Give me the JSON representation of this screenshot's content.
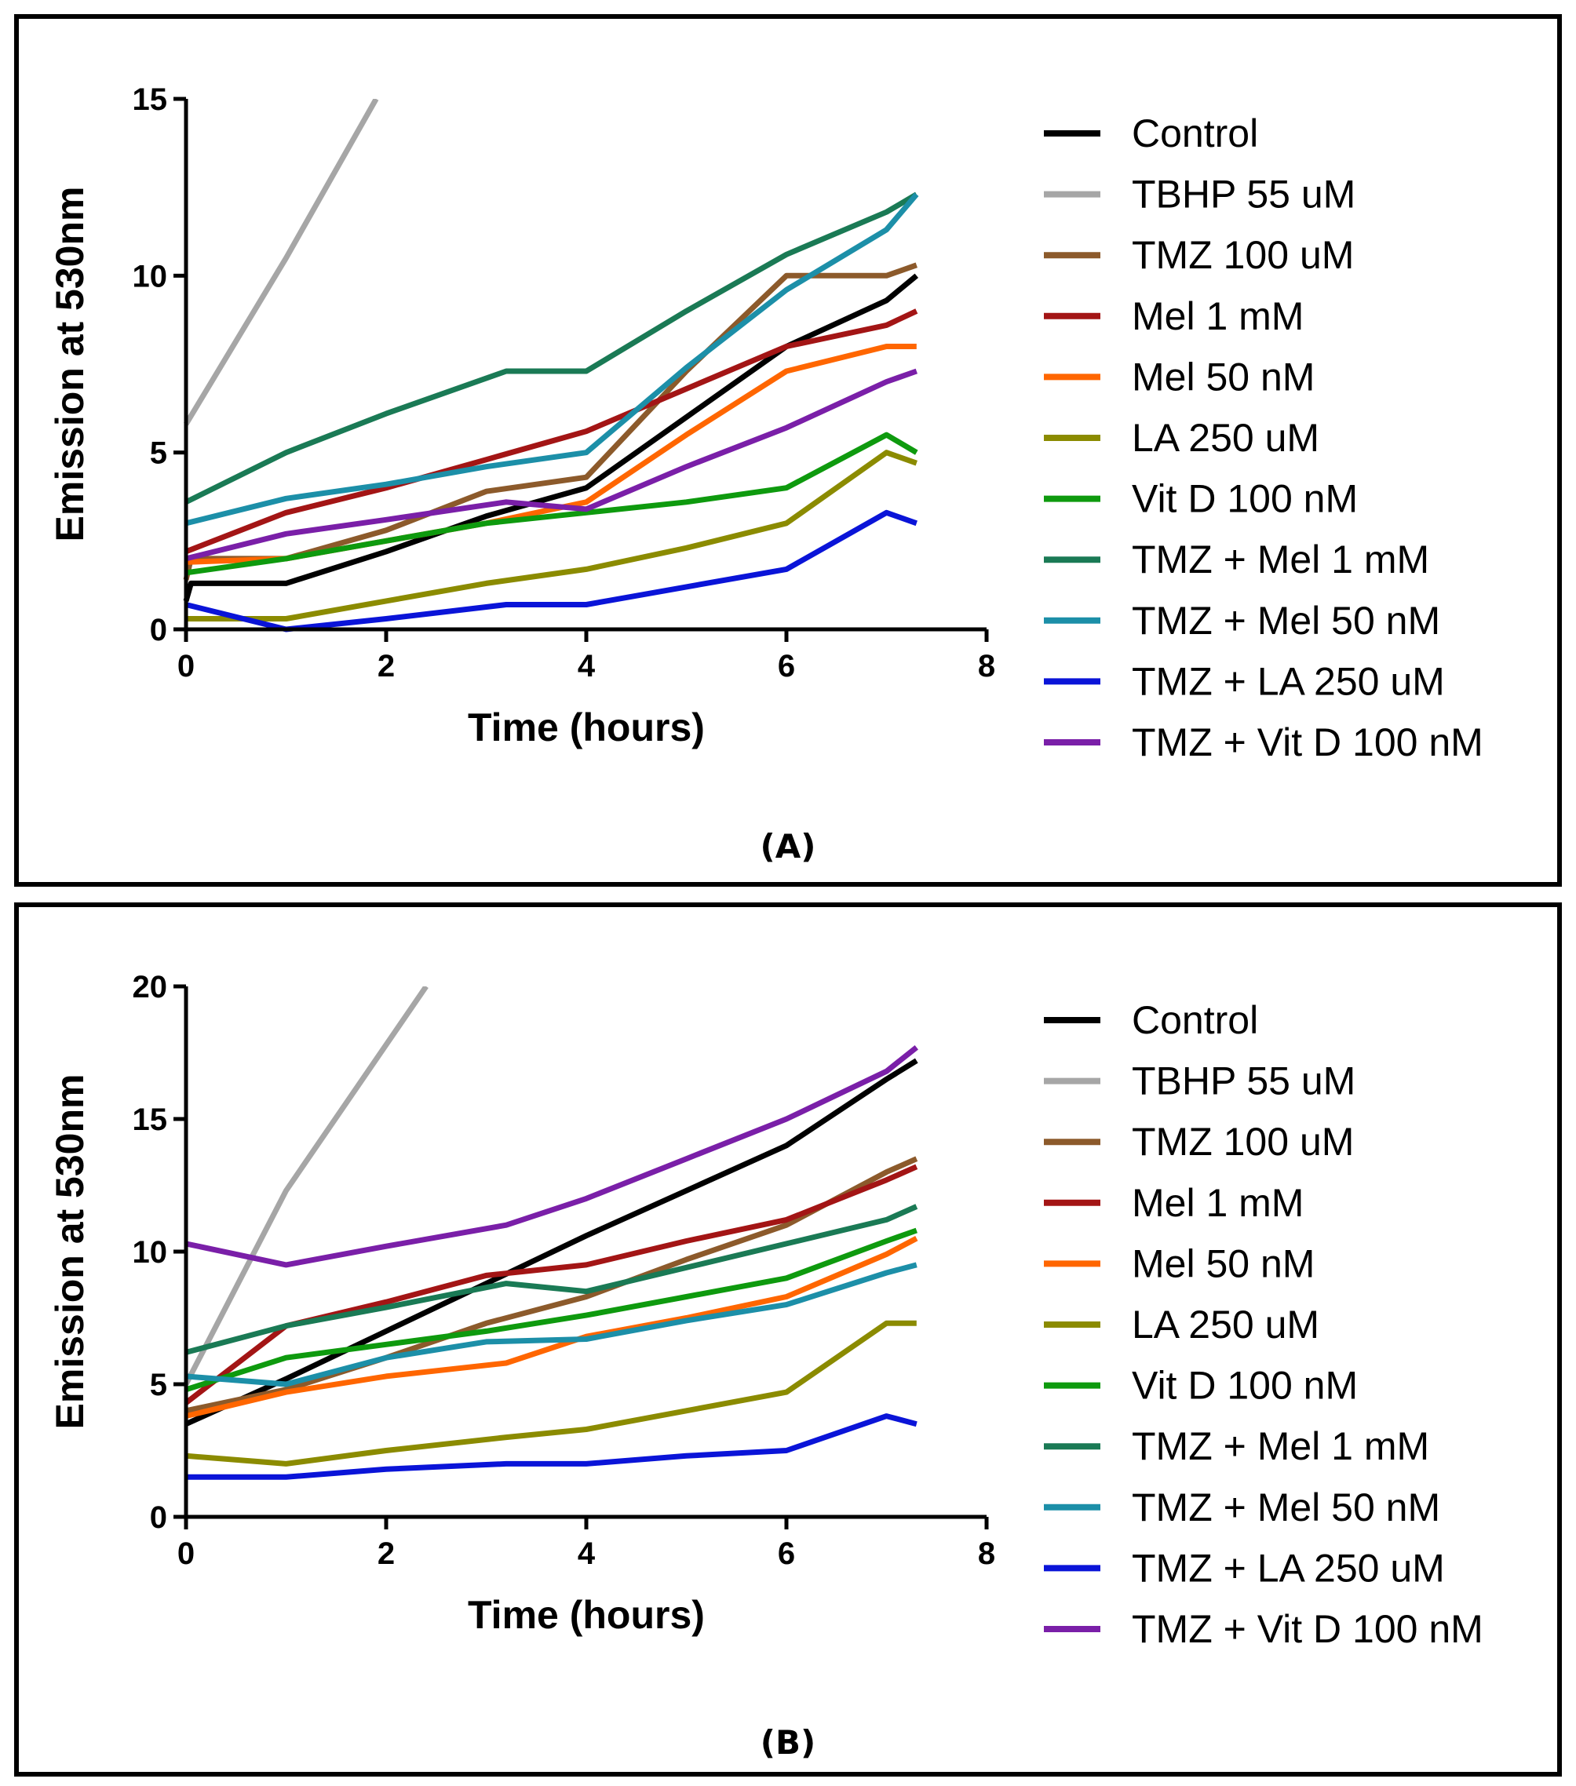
{
  "chart_data": [
    {
      "type": "line",
      "panel_label": "(A)",
      "xlabel": "Time (hours)",
      "ylabel": "Emission at 530nm",
      "xlim": [
        0,
        8
      ],
      "ylim": [
        0,
        15
      ],
      "xticks": [
        0,
        2,
        4,
        6,
        8
      ],
      "yticks": [
        0,
        5,
        10,
        15
      ],
      "legend_position": "right",
      "series": [
        {
          "name": "Control",
          "color": "#000000",
          "points": [
            [
              0,
              0.8
            ],
            [
              0.05,
              1.3
            ],
            [
              1,
              1.3
            ],
            [
              2,
              2.2
            ],
            [
              3,
              3.2
            ],
            [
              4,
              4
            ],
            [
              5,
              6
            ],
            [
              6,
              8
            ],
            [
              7,
              9.3
            ],
            [
              7.3,
              10
            ]
          ]
        },
        {
          "name": "TBHP 55 uM",
          "color": "#a6a6a6",
          "points": [
            [
              0,
              5.8
            ],
            [
              1,
              10.5
            ],
            [
              1.9,
              15
            ]
          ]
        },
        {
          "name": "TMZ 100 uM",
          "color": "#8c5a2b",
          "points": [
            [
              0,
              1.4
            ],
            [
              0.05,
              2
            ],
            [
              1,
              2
            ],
            [
              2,
              2.8
            ],
            [
              3,
              3.9
            ],
            [
              4,
              4.3
            ],
            [
              5,
              7.3
            ],
            [
              6,
              10
            ],
            [
              7,
              10
            ],
            [
              7.3,
              10.3
            ]
          ]
        },
        {
          "name": "Mel 1 mM",
          "color": "#a31515",
          "points": [
            [
              0,
              2.2
            ],
            [
              1,
              3.3
            ],
            [
              2,
              4
            ],
            [
              3,
              4.8
            ],
            [
              4,
              5.6
            ],
            [
              5,
              6.8
            ],
            [
              6,
              8
            ],
            [
              7,
              8.6
            ],
            [
              7.3,
              9
            ]
          ]
        },
        {
          "name": "Mel 50 nM",
          "color": "#ff6600",
          "points": [
            [
              0,
              1.9
            ],
            [
              1,
              2
            ],
            [
              2,
              2.5
            ],
            [
              3,
              3
            ],
            [
              4,
              3.6
            ],
            [
              5,
              5.5
            ],
            [
              6,
              7.3
            ],
            [
              7,
              8
            ],
            [
              7.3,
              8
            ]
          ]
        },
        {
          "name": "LA 250 uM",
          "color": "#8b8b00",
          "points": [
            [
              0,
              0.3
            ],
            [
              1,
              0.3
            ],
            [
              2,
              0.8
            ],
            [
              3,
              1.3
            ],
            [
              4,
              1.7
            ],
            [
              5,
              2.3
            ],
            [
              6,
              3
            ],
            [
              7,
              5
            ],
            [
              7.3,
              4.7
            ]
          ]
        },
        {
          "name": "Vit D 100 nM",
          "color": "#0e9a0e",
          "points": [
            [
              0,
              1.6
            ],
            [
              1,
              2
            ],
            [
              2,
              2.5
            ],
            [
              3,
              3
            ],
            [
              4,
              3.3
            ],
            [
              5,
              3.6
            ],
            [
              6,
              4
            ],
            [
              7,
              5.5
            ],
            [
              7.3,
              5
            ]
          ]
        },
        {
          "name": "TMZ + Mel 1 mM",
          "color": "#1a7a55",
          "points": [
            [
              0,
              3.6
            ],
            [
              1,
              5
            ],
            [
              2,
              6.1
            ],
            [
              3.2,
              7.3
            ],
            [
              4,
              7.3
            ],
            [
              5,
              9
            ],
            [
              6,
              10.6
            ],
            [
              7,
              11.8
            ],
            [
              7.3,
              12.3
            ]
          ]
        },
        {
          "name": "TMZ + Mel 50 nM",
          "color": "#1c8fa8",
          "points": [
            [
              0,
              3
            ],
            [
              1,
              3.7
            ],
            [
              2,
              4.1
            ],
            [
              3,
              4.6
            ],
            [
              4,
              5
            ],
            [
              5,
              7.4
            ],
            [
              6,
              9.6
            ],
            [
              7,
              11.3
            ],
            [
              7.3,
              12.3
            ]
          ]
        },
        {
          "name": "TMZ + LA 250 uM",
          "color": "#0a14d8",
          "points": [
            [
              0,
              0.7
            ],
            [
              1,
              0
            ],
            [
              2,
              0.3
            ],
            [
              3.2,
              0.7
            ],
            [
              4,
              0.7
            ],
            [
              5,
              1.2
            ],
            [
              6,
              1.7
            ],
            [
              7,
              3.3
            ],
            [
              7.3,
              3
            ]
          ]
        },
        {
          "name": "TMZ + Vit D 100 nM",
          "color": "#7a1fa8",
          "points": [
            [
              0,
              2
            ],
            [
              1,
              2.7
            ],
            [
              2,
              3.1
            ],
            [
              3.2,
              3.6
            ],
            [
              4,
              3.4
            ],
            [
              5,
              4.6
            ],
            [
              6,
              5.7
            ],
            [
              7,
              7
            ],
            [
              7.3,
              7.3
            ]
          ]
        }
      ]
    },
    {
      "type": "line",
      "panel_label": "(B)",
      "xlabel": "Time (hours)",
      "ylabel": "Emission at 530nm",
      "xlim": [
        0,
        8
      ],
      "ylim": [
        0,
        20
      ],
      "xticks": [
        0,
        2,
        4,
        6,
        8
      ],
      "yticks": [
        0,
        5,
        10,
        15,
        20
      ],
      "legend_position": "right",
      "series": [
        {
          "name": "Control",
          "color": "#000000",
          "points": [
            [
              0,
              3.5
            ],
            [
              1,
              5.2
            ],
            [
              2,
              7
            ],
            [
              3,
              8.8
            ],
            [
              4,
              10.6
            ],
            [
              5,
              12.3
            ],
            [
              6,
              14
            ],
            [
              7,
              16.5
            ],
            [
              7.3,
              17.2
            ]
          ]
        },
        {
          "name": "TBHP 55 uM",
          "color": "#a6a6a6",
          "points": [
            [
              0,
              5
            ],
            [
              1,
              12.3
            ],
            [
              2.4,
              20
            ]
          ]
        },
        {
          "name": "TMZ 100 uM",
          "color": "#8c5a2b",
          "points": [
            [
              0,
              4
            ],
            [
              1,
              4.8
            ],
            [
              2,
              6
            ],
            [
              3,
              7.3
            ],
            [
              4,
              8.3
            ],
            [
              5,
              9.7
            ],
            [
              6,
              11
            ],
            [
              7,
              13
            ],
            [
              7.3,
              13.5
            ]
          ]
        },
        {
          "name": "Mel 1 mM",
          "color": "#a31515",
          "points": [
            [
              0,
              4.3
            ],
            [
              1,
              7.2
            ],
            [
              2,
              8.1
            ],
            [
              3,
              9.1
            ],
            [
              4,
              9.5
            ],
            [
              5,
              10.4
            ],
            [
              6,
              11.2
            ],
            [
              7,
              12.7
            ],
            [
              7.3,
              13.2
            ]
          ]
        },
        {
          "name": "Mel 50 nM",
          "color": "#ff6600",
          "points": [
            [
              0,
              3.8
            ],
            [
              1,
              4.7
            ],
            [
              2,
              5.3
            ],
            [
              3.2,
              5.8
            ],
            [
              4,
              6.8
            ],
            [
              5,
              7.5
            ],
            [
              6,
              8.3
            ],
            [
              7,
              9.9
            ],
            [
              7.3,
              10.5
            ]
          ]
        },
        {
          "name": "LA 250 uM",
          "color": "#8b8b00",
          "points": [
            [
              0,
              2.3
            ],
            [
              1,
              2
            ],
            [
              2,
              2.5
            ],
            [
              3.2,
              3
            ],
            [
              4,
              3.3
            ],
            [
              5,
              4
            ],
            [
              6,
              4.7
            ],
            [
              7,
              7.3
            ],
            [
              7.3,
              7.3
            ]
          ]
        },
        {
          "name": "Vit D 100 nM",
          "color": "#0e9a0e",
          "points": [
            [
              0,
              4.8
            ],
            [
              1,
              6
            ],
            [
              2,
              6.5
            ],
            [
              3,
              7
            ],
            [
              4,
              7.6
            ],
            [
              5,
              8.3
            ],
            [
              6,
              9
            ],
            [
              7,
              10.4
            ],
            [
              7.3,
              10.8
            ]
          ]
        },
        {
          "name": "TMZ + Mel 1 mM",
          "color": "#1a7a55",
          "points": [
            [
              0,
              6.2
            ],
            [
              1,
              7.2
            ],
            [
              2,
              7.9
            ],
            [
              3.2,
              8.8
            ],
            [
              4,
              8.5
            ],
            [
              5,
              9.4
            ],
            [
              6,
              10.3
            ],
            [
              7,
              11.2
            ],
            [
              7.3,
              11.7
            ]
          ]
        },
        {
          "name": "TMZ + Mel 50 nM",
          "color": "#1c8fa8",
          "points": [
            [
              0,
              5.3
            ],
            [
              1,
              5
            ],
            [
              2,
              6
            ],
            [
              3,
              6.6
            ],
            [
              4,
              6.7
            ],
            [
              5,
              7.4
            ],
            [
              6,
              8
            ],
            [
              7,
              9.2
            ],
            [
              7.3,
              9.5
            ]
          ]
        },
        {
          "name": "TMZ + LA 250 uM",
          "color": "#0a14d8",
          "points": [
            [
              0,
              1.5
            ],
            [
              1,
              1.5
            ],
            [
              2,
              1.8
            ],
            [
              3.2,
              2
            ],
            [
              4,
              2
            ],
            [
              5,
              2.3
            ],
            [
              6,
              2.5
            ],
            [
              7,
              3.8
            ],
            [
              7.3,
              3.5
            ]
          ]
        },
        {
          "name": "TMZ + Vit D 100 nM",
          "color": "#7a1fa8",
          "points": [
            [
              0,
              10.3
            ],
            [
              1,
              9.5
            ],
            [
              2,
              10.2
            ],
            [
              3.2,
              11
            ],
            [
              4,
              12
            ],
            [
              5,
              13.5
            ],
            [
              6,
              15
            ],
            [
              7,
              16.8
            ],
            [
              7.3,
              17.7
            ]
          ]
        }
      ]
    }
  ]
}
